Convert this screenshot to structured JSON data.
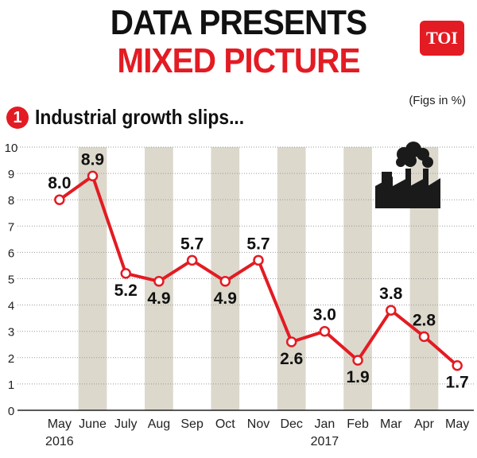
{
  "header": {
    "line1": "DATA PRESENTS",
    "line2": "MIXED PICTURE",
    "logo": "TOI",
    "note": "(Figs in %)"
  },
  "section": {
    "badge": "1",
    "title": "Industrial growth slips..."
  },
  "colors": {
    "accent": "#e31b23",
    "band": "#dcd8cc",
    "text": "#111111"
  },
  "icons": {
    "factory": "factory-icon"
  },
  "chart_data": {
    "type": "line",
    "categories": [
      "May",
      "June",
      "July",
      "Aug",
      "Sep",
      "Oct",
      "Nov",
      "Dec",
      "Jan",
      "Feb",
      "Mar",
      "Apr",
      "May"
    ],
    "year_labels": [
      {
        "index": 0,
        "text": "2016"
      },
      {
        "index": 8,
        "text": "2017"
      }
    ],
    "values": [
      8.0,
      8.9,
      5.2,
      4.9,
      5.7,
      4.9,
      5.7,
      2.6,
      3.0,
      1.9,
      3.8,
      2.8,
      1.7
    ],
    "labels": [
      "8.0",
      "8.9",
      "5.2",
      "4.9",
      "5.7",
      "4.9",
      "5.7",
      "2.6",
      "3.0",
      "1.9",
      "3.8",
      "2.8",
      "1.7"
    ],
    "label_position": [
      "above",
      "above",
      "below",
      "below",
      "above",
      "below",
      "above",
      "below",
      "above",
      "below",
      "above",
      "above",
      "below"
    ],
    "yticks": [
      0,
      1,
      2,
      3,
      4,
      5,
      6,
      7,
      8,
      9,
      10
    ],
    "ylim": [
      0,
      10
    ],
    "shaded_columns": [
      1,
      3,
      5,
      7,
      9,
      11
    ],
    "grid": true
  }
}
